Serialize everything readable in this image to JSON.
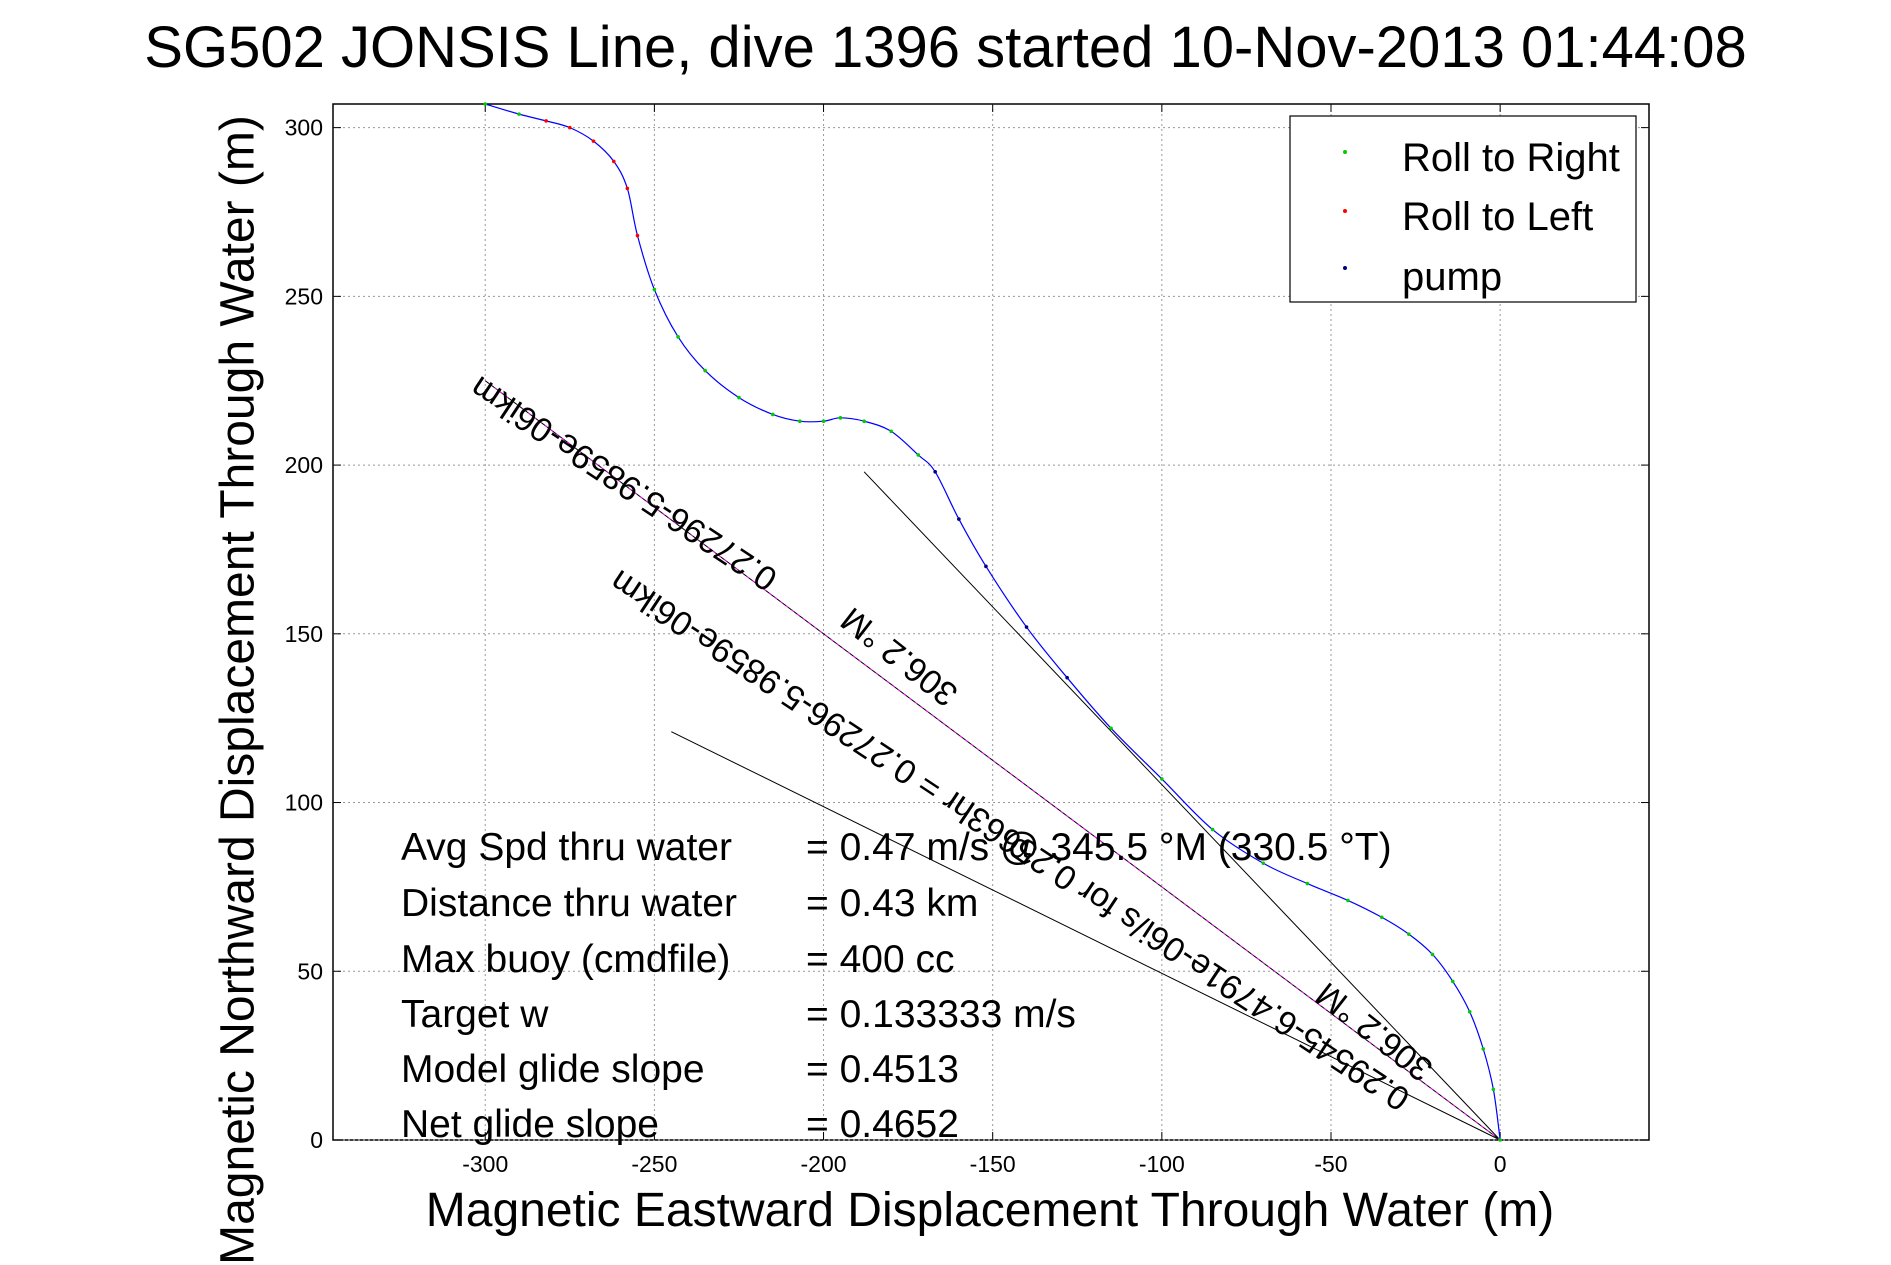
{
  "chart_data": {
    "type": "line",
    "title": "SG502 JONSIS Line, dive 1396 started 10-Nov-2013 01:44:08",
    "xlabel": "Magnetic Eastward Displacement Through Water (m)",
    "ylabel": "Magnetic Northward Displacement Through Water (m)",
    "xlim": [
      -345,
      44
    ],
    "ylim": [
      0,
      307
    ],
    "xticks": [
      -300,
      -250,
      -200,
      -150,
      -100,
      -50,
      0
    ],
    "yticks": [
      0,
      50,
      100,
      150,
      200,
      250,
      300
    ],
    "grid": true,
    "legend_position": "top-right",
    "legend": [
      "Roll to Right",
      "Roll to Left",
      "pump"
    ],
    "colors": {
      "track": "#0000ff",
      "roll_right": "#00cc00",
      "roll_left": "#ff0000",
      "pump": "#000080",
      "reference_lines": "#000000",
      "net_line": "#ff00ff",
      "grid": "#999999"
    },
    "series": [
      {
        "name": "track",
        "x": [
          0,
          -2,
          -5,
          -9,
          -14,
          -20,
          -27,
          -35,
          -45,
          -57,
          -70,
          -85,
          -100,
          -115,
          -128,
          -140,
          -152,
          -160,
          -167,
          -172,
          -180,
          -188,
          -195,
          -200,
          -207,
          -215,
          -225,
          -235,
          -243,
          -250,
          -255,
          -258,
          -262,
          -268,
          -275,
          -282,
          -290,
          -300
        ],
        "y": [
          0,
          15,
          27,
          38,
          47,
          55,
          61,
          66,
          71,
          76,
          82,
          92,
          107,
          122,
          137,
          152,
          170,
          184,
          198,
          203,
          210,
          213,
          214,
          213,
          213,
          215,
          220,
          228,
          238,
          252,
          268,
          282,
          290,
          296,
          300,
          302,
          304,
          307
        ]
      }
    ],
    "reference_lines": [
      {
        "x": [
          0,
          -188
        ],
        "y": [
          0,
          198
        ]
      },
      {
        "x": [
          0,
          -245
        ],
        "y": [
          0,
          121
        ]
      },
      {
        "x": [
          0,
          -300
        ],
        "y": [
          0,
          225
        ]
      }
    ],
    "text_stats": [
      {
        "label": "Avg Spd thru water",
        "value": "=  0.47 m/s @ 345.5 °M (330.5 °T)"
      },
      {
        "label": "Distance thru water",
        "value": "=  0.43 km"
      },
      {
        "label": "Max buoy (cmdfile)",
        "value": "= 400 cc"
      },
      {
        "label": "Target w",
        "value": "= 0.133333 m/s"
      },
      {
        "label": "Model glide slope",
        "value": "= 0.4513"
      },
      {
        "label": "Net glide slope",
        "value": "= 0.4652"
      }
    ],
    "rotated_annotations": [
      {
        "text": "0.27296-5.9859e-06ikm"
      },
      {
        "text": "0.29545-6.4791e-06i/s for 0.25663hr = 0.27296-5.9859e-06ikm"
      },
      {
        "text": "306.2 °M"
      },
      {
        "text": "306.2 °M"
      }
    ]
  }
}
